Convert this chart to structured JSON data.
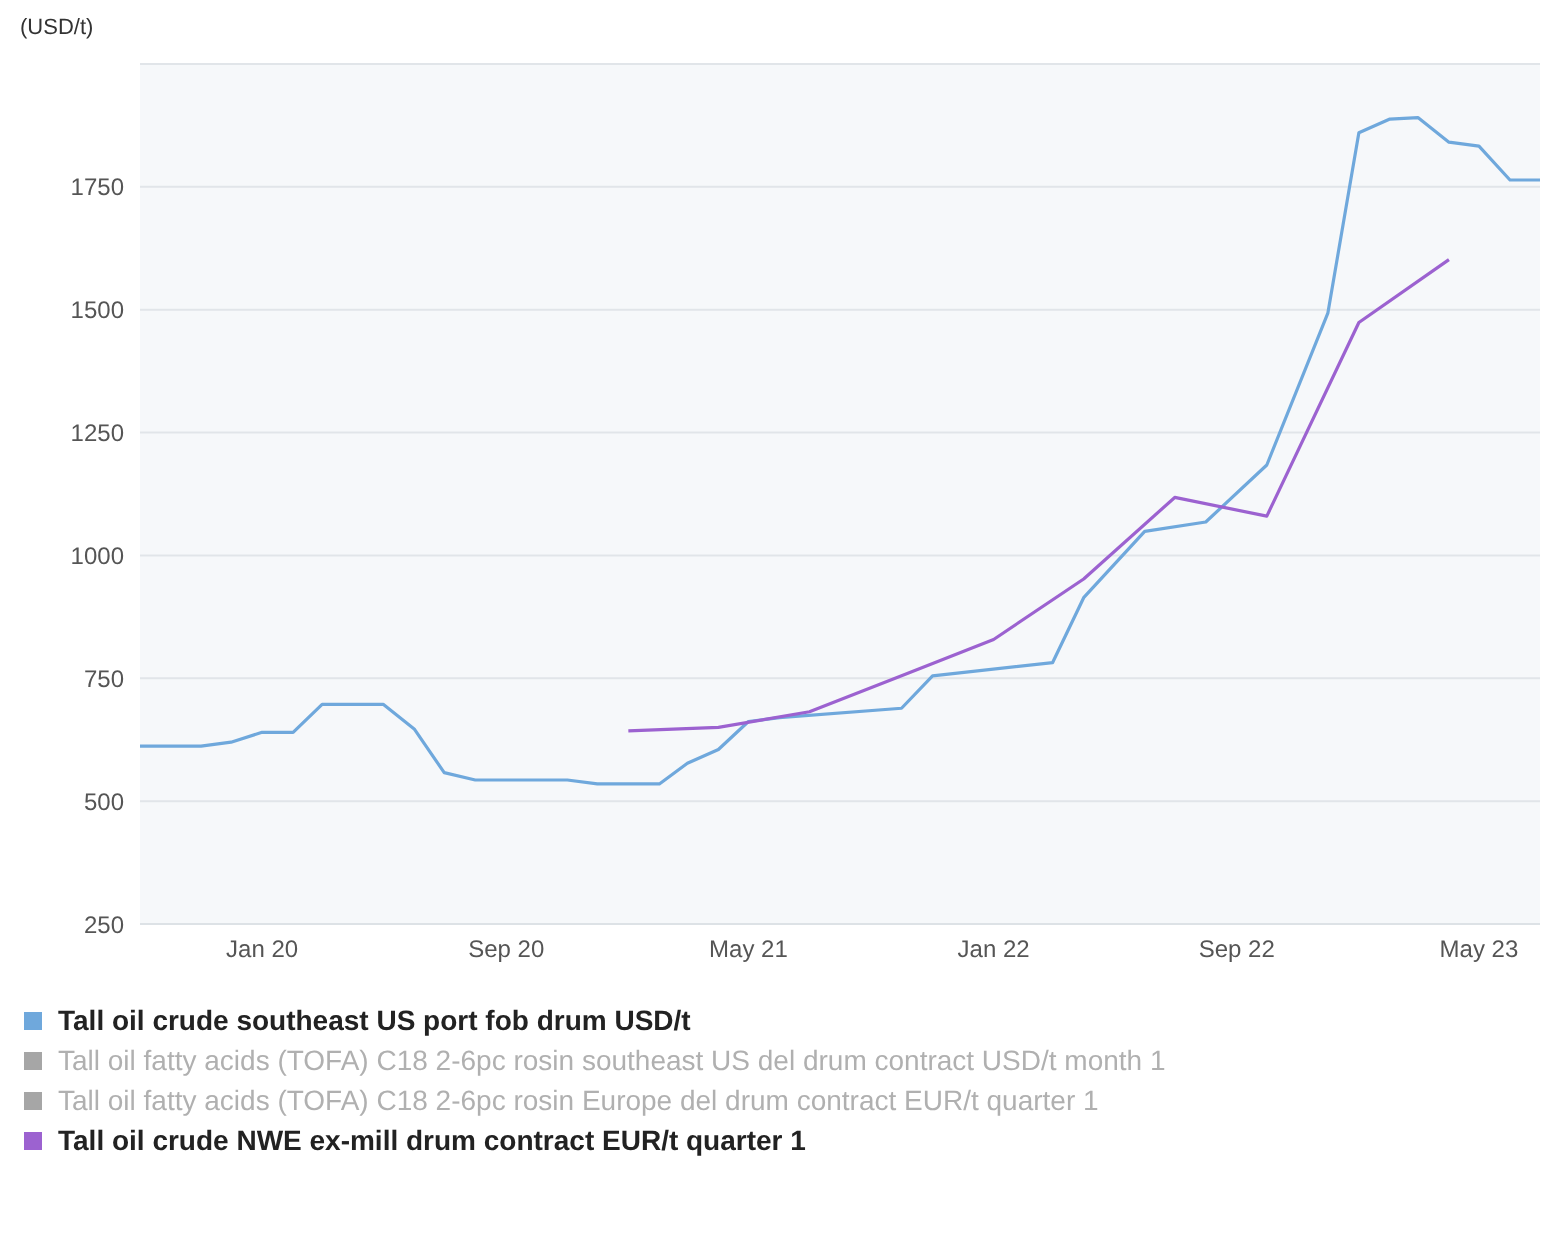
{
  "chart_data": {
    "type": "line",
    "ylabel": "(USD/t)",
    "xlim": [
      "2019-09",
      "2023-07"
    ],
    "xticks": [
      {
        "value": "2020-01",
        "label": "Jan 20"
      },
      {
        "value": "2020-09",
        "label": "Sep 20"
      },
      {
        "value": "2021-05",
        "label": "May 21"
      },
      {
        "value": "2022-01",
        "label": "Jan 22"
      },
      {
        "value": "2022-09",
        "label": "Sep 22"
      },
      {
        "value": "2023-05",
        "label": "May 23"
      }
    ],
    "ylim": [
      250,
      2000
    ],
    "yticks": [
      250,
      500,
      750,
      1000,
      1250,
      1500,
      1750
    ],
    "grid": "y",
    "legend": "bottom",
    "marker": "none",
    "line_style": "solid",
    "series": [
      {
        "name": "Tall oil crude southeast US port fob drum USD/t",
        "color": "#6fa8dc",
        "x": [
          "2019-09",
          "2019-11",
          "2019-12",
          "2020-01",
          "2020-02",
          "2020-03",
          "2020-05",
          "2020-06",
          "2020-07",
          "2020-08",
          "2020-11",
          "2020-12",
          "2021-02",
          "2021-03",
          "2021-04",
          "2021-05",
          "2021-06",
          "2021-10",
          "2021-11",
          "2022-03",
          "2022-04",
          "2022-06",
          "2022-08",
          "2022-10",
          "2022-12",
          "2023-01",
          "2023-02",
          "2023-03",
          "2023-04",
          "2023-05",
          "2023-06",
          "2023-07"
        ],
        "values": [
          612,
          612,
          620,
          640,
          640,
          697,
          697,
          647,
          558,
          543,
          543,
          535,
          535,
          577,
          605,
          662,
          670,
          689,
          755,
          782,
          914,
          1049,
          1068,
          1184,
          1493,
          1860,
          1888,
          1891,
          1841,
          1833,
          1764,
          1764
        ]
      },
      {
        "name": "Tall oil fatty acids (TOFA) C18 2-6pc rosin southeast US del drum contract USD/t month 1",
        "color": "#a6a6a6"
      },
      {
        "name": "Tall oil fatty acids (TOFA) C18 2-6pc rosin Europe del drum contract EUR/t quarter 1",
        "color": "#a6a6a6"
      },
      {
        "name": "Tall oil crude NWE ex-mill drum contract EUR/t quarter 1",
        "color": "#9c62d0",
        "x": [
          "2021-01",
          "2021-04",
          "2021-07",
          "2021-10",
          "2022-01",
          "2022-04",
          "2022-07",
          "2022-10",
          "2023-01",
          "2023-04"
        ],
        "values": [
          643,
          650,
          682,
          755,
          829,
          952,
          1118,
          1080,
          1474,
          1602
        ]
      }
    ]
  }
}
